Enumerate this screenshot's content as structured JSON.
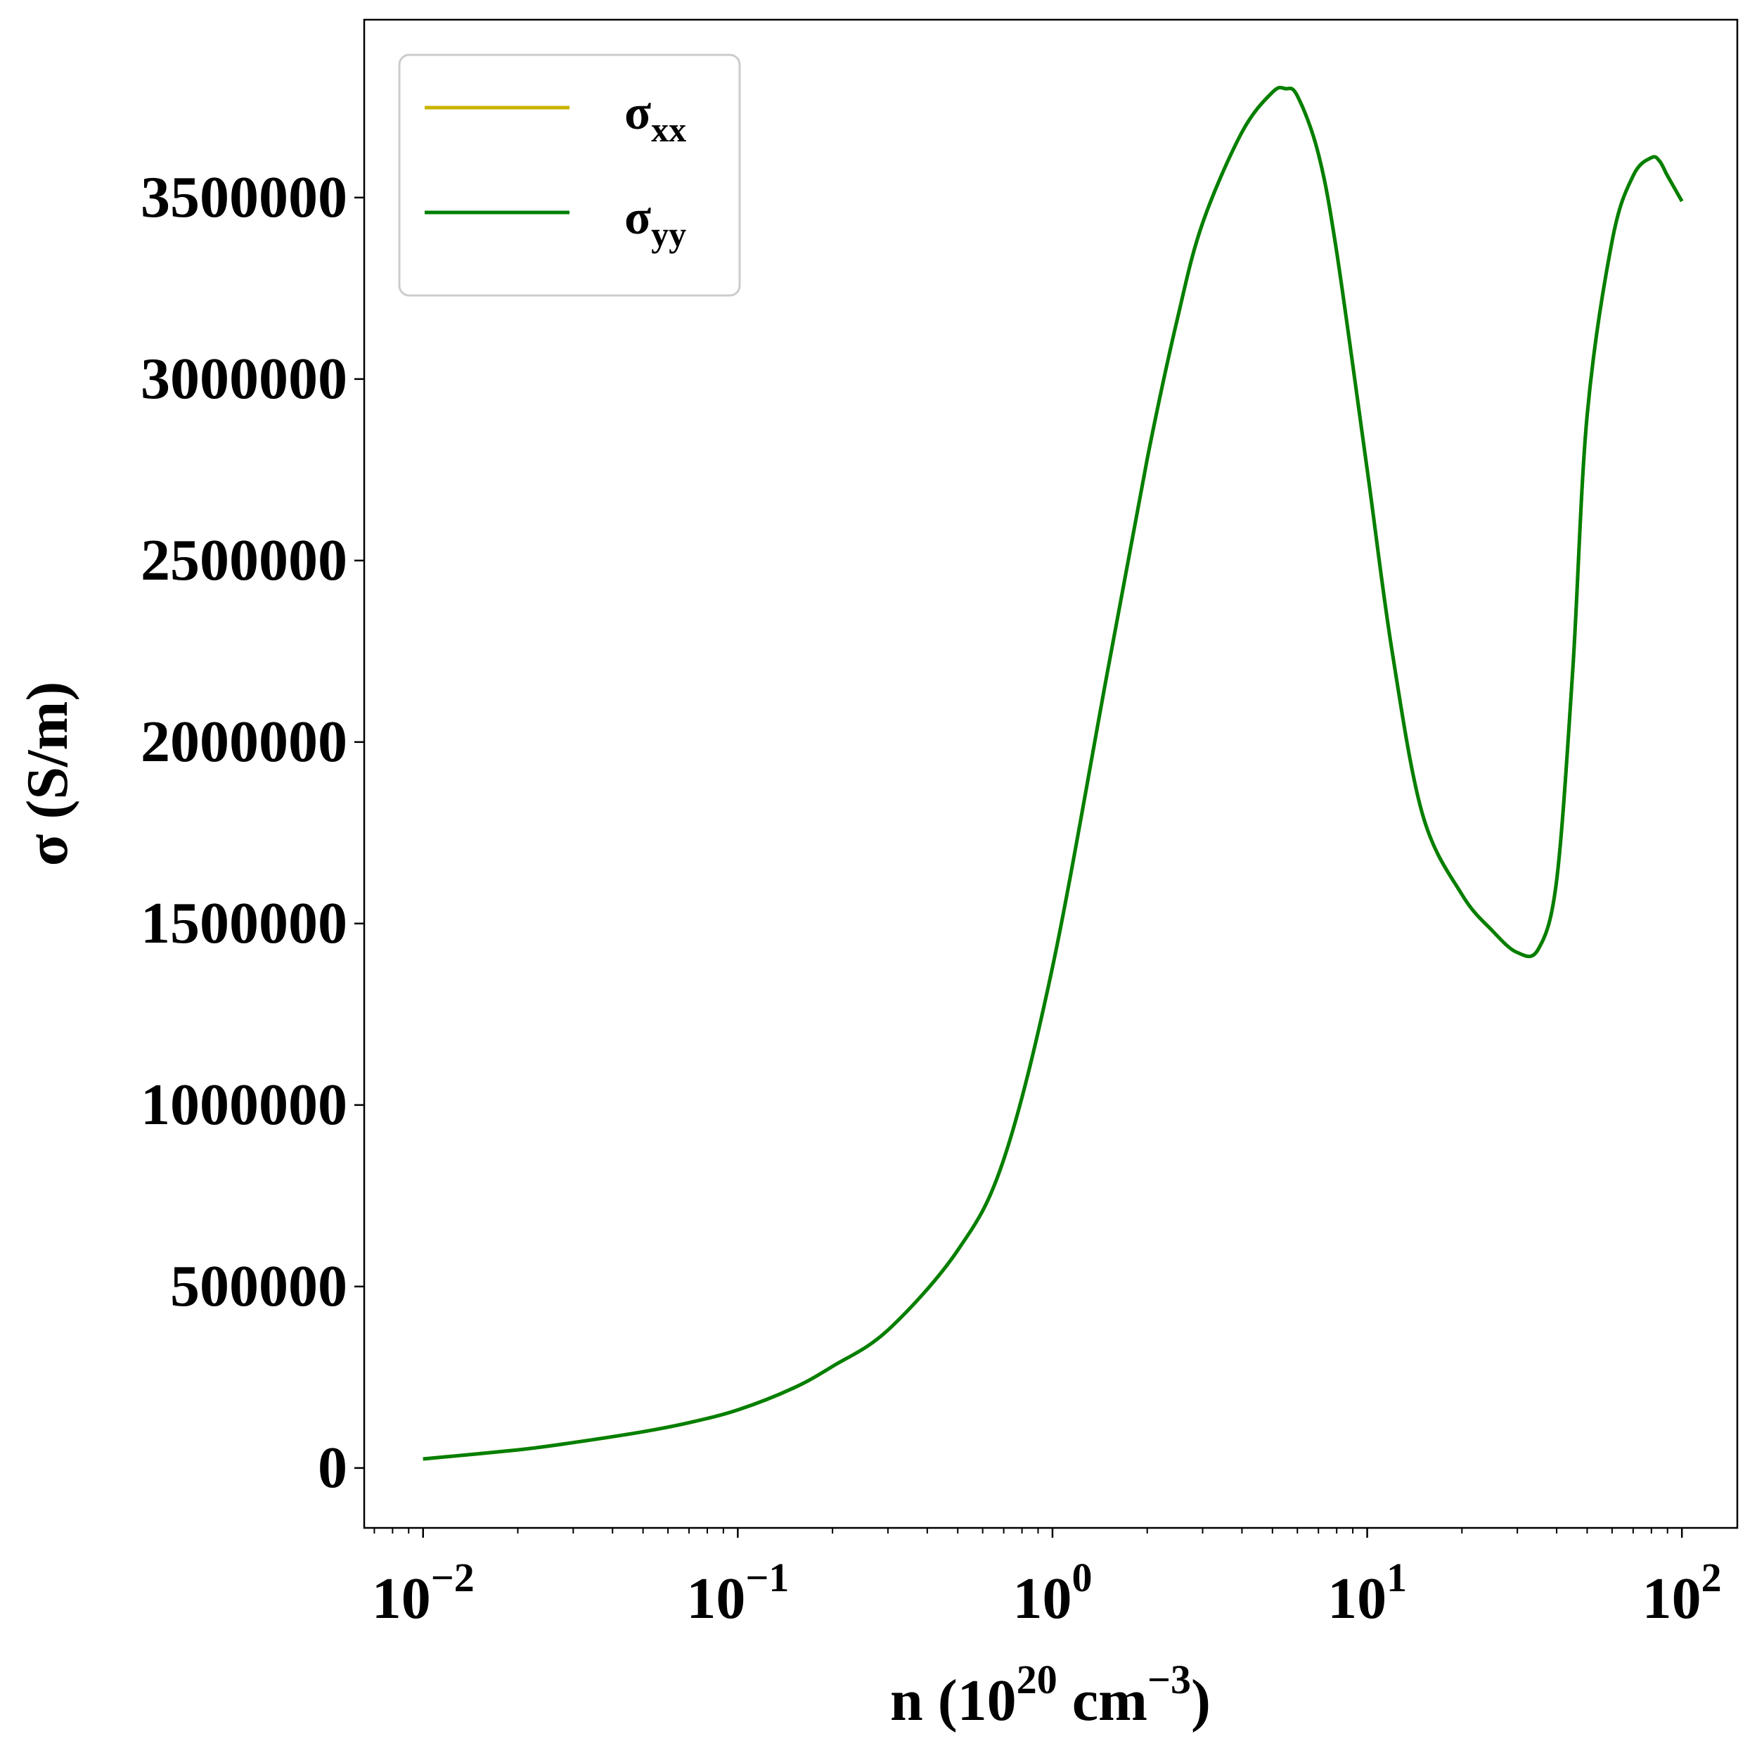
{
  "chart_data": {
    "type": "line",
    "title": "",
    "xlabel": {
      "base": "n (10",
      "exp1": "20",
      "mid": " cm",
      "exp2": "−3",
      "end": ")"
    },
    "ylabel": "σ (S/m)",
    "xscale": "log",
    "xlim": [
      0.0065,
      150
    ],
    "ylim": [
      -165000,
      3990000
    ],
    "grid": false,
    "legend_placement": "top-left",
    "x_ticks": [
      {
        "value": 0.01,
        "base": "10",
        "exp": "−2"
      },
      {
        "value": 0.1,
        "base": "10",
        "exp": "−1"
      },
      {
        "value": 1,
        "base": "10",
        "exp": "0"
      },
      {
        "value": 10,
        "base": "10",
        "exp": "1"
      },
      {
        "value": 100,
        "base": "10",
        "exp": "2"
      }
    ],
    "y_ticks": [
      {
        "value": 0,
        "label": "0"
      },
      {
        "value": 500000,
        "label": "500000"
      },
      {
        "value": 1000000,
        "label": "1000000"
      },
      {
        "value": 1500000,
        "label": "1500000"
      },
      {
        "value": 2000000,
        "label": "2000000"
      },
      {
        "value": 2500000,
        "label": "2500000"
      },
      {
        "value": 3000000,
        "label": "3000000"
      },
      {
        "value": 3500000,
        "label": "3500000"
      }
    ],
    "series": [
      {
        "name": "σxx",
        "label_base": "σ",
        "label_sub": "xx",
        "color": "#c8b400",
        "x": [
          0.01,
          0.02,
          0.03,
          0.05,
          0.07,
          0.1,
          0.15,
          0.2,
          0.3,
          0.5,
          0.7,
          1.0,
          1.5,
          2.0,
          2.5,
          3.0,
          4.0,
          5.0,
          5.5,
          6.0,
          7.0,
          8.0,
          10.0,
          12.0,
          15.0,
          20.0,
          25.0,
          30.0,
          35.0,
          40.0,
          45.0,
          50.0,
          60.0,
          70.0,
          80.0,
          85.0,
          90.0,
          100.0
        ],
        "y": [
          25000,
          50000,
          70000,
          100000,
          125000,
          160000,
          220000,
          280000,
          380000,
          600000,
          850000,
          1380000,
          2200000,
          2780000,
          3170000,
          3430000,
          3680000,
          3790000,
          3800000,
          3780000,
          3620000,
          3350000,
          2750000,
          2250000,
          1800000,
          1580000,
          1480000,
          1420000,
          1430000,
          1620000,
          2200000,
          2900000,
          3380000,
          3560000,
          3610000,
          3600000,
          3560000,
          3490000
        ]
      },
      {
        "name": "σyy",
        "label_base": "σ",
        "label_sub": "yy",
        "color": "#007f00",
        "x": [
          0.01,
          0.02,
          0.03,
          0.05,
          0.07,
          0.1,
          0.15,
          0.2,
          0.3,
          0.5,
          0.7,
          1.0,
          1.5,
          2.0,
          2.5,
          3.0,
          4.0,
          5.0,
          5.5,
          6.0,
          7.0,
          8.0,
          10.0,
          12.0,
          15.0,
          20.0,
          25.0,
          30.0,
          35.0,
          40.0,
          45.0,
          50.0,
          60.0,
          70.0,
          80.0,
          85.0,
          90.0,
          100.0
        ],
        "y": [
          25000,
          50000,
          70000,
          100000,
          125000,
          160000,
          220000,
          280000,
          380000,
          600000,
          850000,
          1380000,
          2200000,
          2780000,
          3170000,
          3430000,
          3680000,
          3790000,
          3800000,
          3780000,
          3620000,
          3350000,
          2750000,
          2250000,
          1800000,
          1580000,
          1480000,
          1420000,
          1430000,
          1620000,
          2200000,
          2900000,
          3380000,
          3560000,
          3610000,
          3600000,
          3560000,
          3490000
        ]
      }
    ]
  }
}
